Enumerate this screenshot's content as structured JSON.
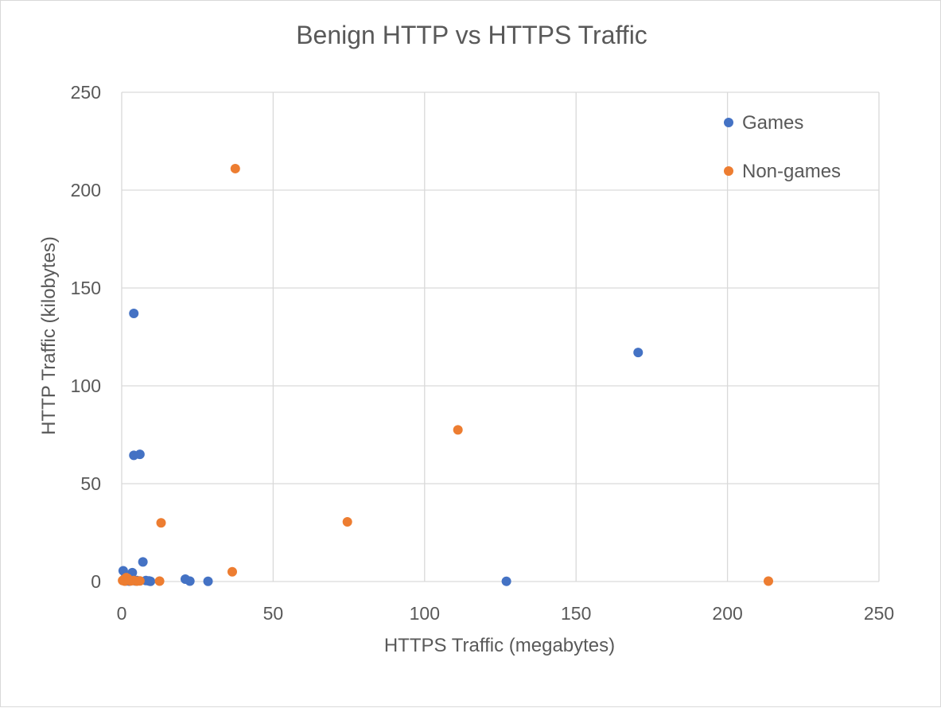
{
  "chart_data": {
    "type": "scatter",
    "title": "Benign HTTP vs HTTPS Traffic",
    "xlabel": "HTTPS Traffic (megabytes)",
    "ylabel": "HTTP Traffic (kilobytes)",
    "xlim": [
      0,
      250
    ],
    "ylim": [
      0,
      250
    ],
    "xticks": [
      0,
      50,
      100,
      150,
      200,
      250
    ],
    "yticks": [
      0,
      50,
      100,
      150,
      200,
      250
    ],
    "grid": true,
    "legend_position": "top-right",
    "series": [
      {
        "name": "Games",
        "color": "#4472c4",
        "points": [
          [
            0.5,
            5.5
          ],
          [
            0.8,
            0.5
          ],
          [
            1.0,
            1.5
          ],
          [
            1.5,
            0.3
          ],
          [
            2.0,
            0.8
          ],
          [
            2.5,
            0.2
          ],
          [
            3.0,
            1.0
          ],
          [
            3.5,
            4.5
          ],
          [
            4.0,
            137
          ],
          [
            4.0,
            64.5
          ],
          [
            4.5,
            0.3
          ],
          [
            5.0,
            0.5
          ],
          [
            6.0,
            65
          ],
          [
            7.0,
            10
          ],
          [
            8.0,
            0.5
          ],
          [
            9.0,
            0.3
          ],
          [
            9.5,
            0.1
          ],
          [
            21.0,
            1.2
          ],
          [
            22.5,
            0.2
          ],
          [
            28.5,
            0.1
          ],
          [
            127.0,
            0.1
          ],
          [
            170.5,
            117
          ]
        ]
      },
      {
        "name": "Non-games",
        "color": "#ed7d31",
        "points": [
          [
            0.3,
            0.5
          ],
          [
            0.7,
            1.0
          ],
          [
            1.0,
            0.2
          ],
          [
            1.5,
            2.0
          ],
          [
            2.0,
            1.5
          ],
          [
            2.5,
            0.5
          ],
          [
            3.0,
            0.3
          ],
          [
            4.0,
            0.5
          ],
          [
            5.0,
            0.2
          ],
          [
            6.0,
            0.3
          ],
          [
            12.5,
            0.2
          ],
          [
            13.0,
            30
          ],
          [
            36.5,
            5
          ],
          [
            37.5,
            211
          ],
          [
            74.5,
            30.5
          ],
          [
            111.0,
            77.5
          ],
          [
            213.5,
            0.2
          ]
        ]
      }
    ]
  }
}
